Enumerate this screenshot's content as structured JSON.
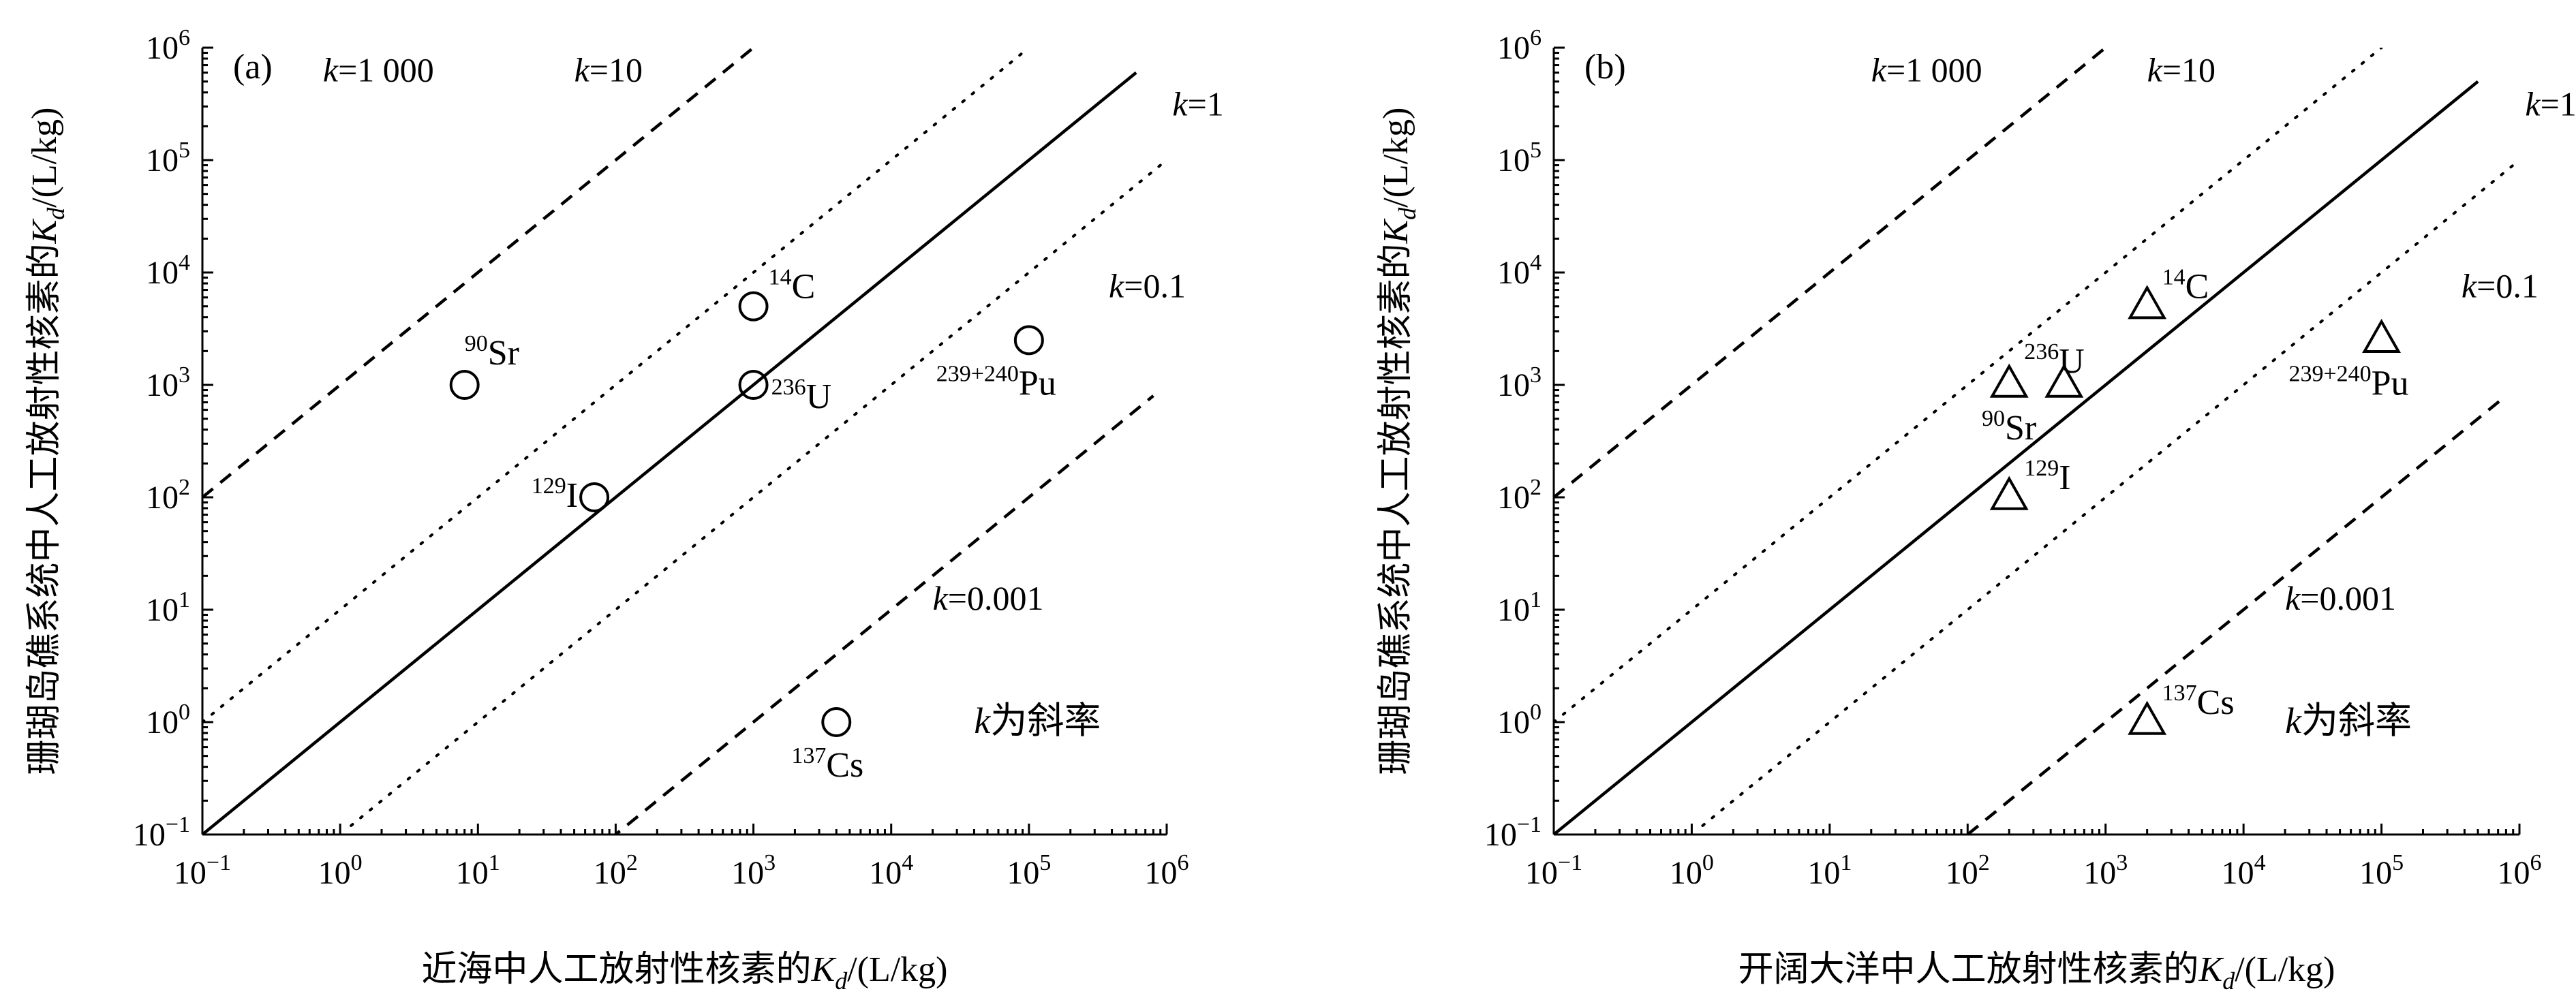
{
  "chart_data": [
    {
      "type": "scatter",
      "panel_label": "(a)",
      "xscale": "log",
      "yscale": "log",
      "xlim": [
        0.1,
        1000000
      ],
      "ylim": [
        0.1,
        1000000
      ],
      "xlabel": "近海中人工放射性核素的",
      "ylabel": "珊瑚岛礁系统中人工放射性核素的",
      "unit": "/(L/kg)",
      "marker": "circle",
      "x_ticks": [
        {
          "value": 0.1,
          "base": "10",
          "exp": "−1"
        },
        {
          "value": 1,
          "base": "10",
          "exp": "0"
        },
        {
          "value": 10,
          "base": "10",
          "exp": "1"
        },
        {
          "value": 100,
          "base": "10",
          "exp": "2"
        },
        {
          "value": 1000,
          "base": "10",
          "exp": "3"
        },
        {
          "value": 10000,
          "base": "10",
          "exp": "4"
        },
        {
          "value": 100000,
          "base": "10",
          "exp": "5"
        },
        {
          "value": 1000000,
          "base": "10",
          "exp": "6"
        }
      ],
      "y_ticks": [
        {
          "value": 0.1,
          "base": "10",
          "exp": "−1"
        },
        {
          "value": 1,
          "base": "10",
          "exp": "0"
        },
        {
          "value": 10,
          "base": "10",
          "exp": "1"
        },
        {
          "value": 100,
          "base": "10",
          "exp": "2"
        },
        {
          "value": 1000,
          "base": "10",
          "exp": "3"
        },
        {
          "value": 10000,
          "base": "10",
          "exp": "4"
        },
        {
          "value": 100000,
          "base": "10",
          "exp": "5"
        },
        {
          "value": 1000000,
          "base": "10",
          "exp": "6"
        }
      ],
      "points": [
        {
          "mass": "90",
          "element": "Sr",
          "x": 8,
          "y": 1000,
          "label_pos": "above"
        },
        {
          "mass": "14",
          "element": "C",
          "x": 1000,
          "y": 5000,
          "label_pos": "right-up"
        },
        {
          "mass": "236",
          "element": "U",
          "x": 1000,
          "y": 1000,
          "label_pos": "right-down"
        },
        {
          "mass": "129",
          "element": "I",
          "x": 70,
          "y": 100,
          "label_pos": "left"
        },
        {
          "mass": "239+240",
          "element": "Pu",
          "x": 100000,
          "y": 2500,
          "label_pos": "below-left"
        },
        {
          "mass": "137",
          "element": "Cs",
          "x": 4000,
          "y": 1,
          "label_pos": "below-left"
        }
      ],
      "ref_lines": [
        {
          "k": 1000,
          "style": "dashed",
          "text": "=1 000",
          "var": "k",
          "x_range": [
            0.1,
            1000
          ],
          "label_x": 0.75,
          "label_y": 500000
        },
        {
          "k": 10,
          "style": "dotted",
          "text": "=10",
          "var": "k",
          "x_range": [
            0.1,
            100000
          ],
          "label_x": 50,
          "label_y": 500000
        },
        {
          "k": 1,
          "style": "solid",
          "text": "=1",
          "var": "k",
          "x_range": [
            0.1,
            600000
          ],
          "label_x": 1100000,
          "label_y": 250000
        },
        {
          "k": 0.1,
          "style": "dotted",
          "text": "=0.1",
          "var": "k",
          "x_range": [
            1.2,
            900000
          ],
          "label_x": 380000,
          "label_y": 6000
        },
        {
          "k": 0.001,
          "style": "dashed",
          "text": "=0.001",
          "var": "k",
          "x_range": [
            90,
            800000
          ],
          "label_x": 20000,
          "label_y": 10
        }
      ],
      "note": {
        "var": "k",
        "text": "为斜率",
        "x": 40000,
        "y": 0.8
      }
    },
    {
      "type": "scatter",
      "panel_label": "(b)",
      "xscale": "log",
      "yscale": "log",
      "xlim": [
        0.1,
        1000000
      ],
      "ylim": [
        0.1,
        1000000
      ],
      "xlabel": "开阔大洋中人工放射性核素的",
      "ylabel": "珊瑚岛礁系统中人工放射性核素的",
      "unit": "/(L/kg)",
      "marker": "triangle",
      "x_ticks": [
        {
          "value": 0.1,
          "base": "10",
          "exp": "−1"
        },
        {
          "value": 1,
          "base": "10",
          "exp": "0"
        },
        {
          "value": 10,
          "base": "10",
          "exp": "1"
        },
        {
          "value": 100,
          "base": "10",
          "exp": "2"
        },
        {
          "value": 1000,
          "base": "10",
          "exp": "3"
        },
        {
          "value": 10000,
          "base": "10",
          "exp": "4"
        },
        {
          "value": 100000,
          "base": "10",
          "exp": "5"
        },
        {
          "value": 1000000,
          "base": "10",
          "exp": "6"
        }
      ],
      "y_ticks": [
        {
          "value": 0.1,
          "base": "10",
          "exp": "−1"
        },
        {
          "value": 1,
          "base": "10",
          "exp": "0"
        },
        {
          "value": 10,
          "base": "10",
          "exp": "1"
        },
        {
          "value": 100,
          "base": "10",
          "exp": "2"
        },
        {
          "value": 1000,
          "base": "10",
          "exp": "3"
        },
        {
          "value": 10000,
          "base": "10",
          "exp": "4"
        },
        {
          "value": 100000,
          "base": "10",
          "exp": "5"
        },
        {
          "value": 1000000,
          "base": "10",
          "exp": "6"
        }
      ],
      "points": [
        {
          "mass": "90",
          "element": "Sr",
          "x": 200,
          "y": 1000,
          "label_pos": "below-left"
        },
        {
          "mass": "236",
          "element": "U",
          "x": 500,
          "y": 1000,
          "label_pos": "above-left"
        },
        {
          "mass": "14",
          "element": "C",
          "x": 2000,
          "y": 5000,
          "label_pos": "right-up"
        },
        {
          "mass": "129",
          "element": "I",
          "x": 200,
          "y": 100,
          "label_pos": "right-up"
        },
        {
          "mass": "239+240",
          "element": "Pu",
          "x": 100000,
          "y": 2500,
          "label_pos": "below-left"
        },
        {
          "mass": "137",
          "element": "Cs",
          "x": 2000,
          "y": 1,
          "label_pos": "right-up"
        }
      ],
      "ref_lines": [
        {
          "k": 1000,
          "style": "dashed",
          "text": "=1 000",
          "var": "k",
          "x_range": [
            0.1,
            1000
          ],
          "label_x": 20,
          "label_y": 500000
        },
        {
          "k": 10,
          "style": "dotted",
          "text": "=10",
          "var": "k",
          "x_range": [
            0.1,
            100000
          ],
          "label_x": 2000,
          "label_y": 500000
        },
        {
          "k": 1,
          "style": "solid",
          "text": "=1",
          "var": "k",
          "x_range": [
            0.1,
            500000
          ],
          "label_x": 1100000,
          "label_y": 250000
        },
        {
          "k": 0.1,
          "style": "dotted",
          "text": "=0.1",
          "var": "k",
          "x_range": [
            1.2,
            900000
          ],
          "label_x": 380000,
          "label_y": 6000
        },
        {
          "k": 0.001,
          "style": "dashed",
          "text": "=0.001",
          "var": "k",
          "x_range": [
            100,
            800000
          ],
          "label_x": 20000,
          "label_y": 10
        }
      ],
      "note": {
        "var": "k",
        "text": "为斜率",
        "x": 20000,
        "y": 0.8
      }
    }
  ]
}
